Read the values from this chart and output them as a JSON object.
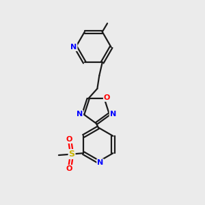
{
  "background_color": "#ebebeb",
  "bond_color": "#1a1a1a",
  "nitrogen_color": "#0000ff",
  "oxygen_color": "#ff0000",
  "sulfur_color": "#c8b400",
  "carbon_color": "#1a1a1a",
  "line_width": 1.6,
  "figsize": [
    3.0,
    3.0
  ],
  "dpi": 100,
  "xlim": [
    0,
    10
  ],
  "ylim": [
    0,
    10
  ]
}
